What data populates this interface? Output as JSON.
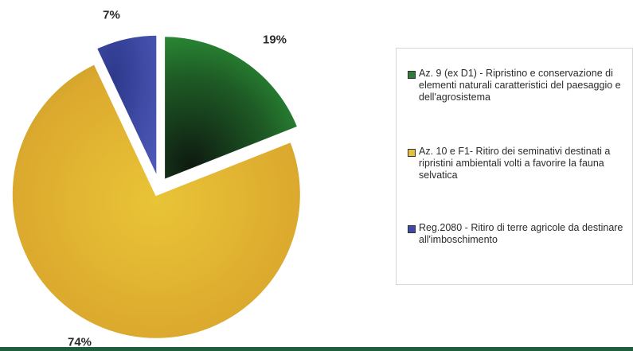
{
  "chart_data": {
    "type": "pie",
    "slices": [
      {
        "label": "Az. 9 (ex D1) - Ripristino e conservazione di elementi naturali caratteristici del paesaggio e dell'agrosistema",
        "value": 19,
        "label_text": "19%",
        "color": "#2e8b3a"
      },
      {
        "label": "Az. 10 e F1- Ritiro dei seminativi destinati a ripristini ambientali volti a favorire la fauna selvatica",
        "value": 74,
        "label_text": "74%",
        "color": "#e0b43a"
      },
      {
        "label": "Reg.2080 - Ritiro di terre agricole da destinare all'imboschimento",
        "value": 7,
        "label_text": "7%",
        "color": "#3f49a6"
      }
    ],
    "legend_position": "right",
    "exploded": true
  },
  "legend": {
    "items": [
      {
        "text": "Az. 9 (ex D1) - Ripristino e conservazione di elementi naturali caratteristici del paesaggio e dell'agrosistema",
        "color": "#2e7d3a"
      },
      {
        "text": "Az. 10 e F1- Ritiro dei seminativi destinati a ripristini ambientali volti a favorire la fauna selvatica",
        "color": "#e3c043"
      },
      {
        "text": "Reg.2080 - Ritiro di terre agricole da destinare all'imboschimento",
        "color": "#3f49a6"
      }
    ]
  },
  "colors": {
    "accent_bar": "#1c5f3a"
  }
}
